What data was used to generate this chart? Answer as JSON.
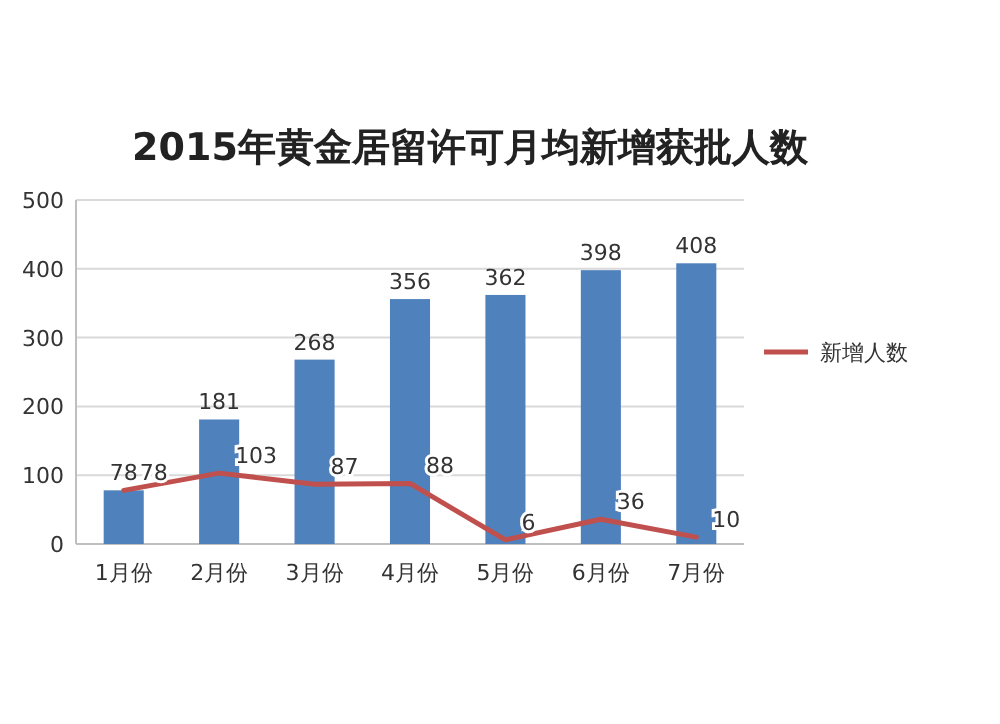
{
  "chart_data": {
    "type": "bar",
    "title": "2015年黄金居留许可月均新增获批人数",
    "categories": [
      "1月份",
      "2月份",
      "3月份",
      "4月份",
      "5月份",
      "6月份",
      "7月份"
    ],
    "series": [
      {
        "color": "#4f81bd",
        "values": [
          78,
          181,
          268,
          356,
          362,
          398,
          408
        ]
      },
      {
        "name": "新增人数",
        "type": "line",
        "color": "#c0504d",
        "values": [
          78,
          103,
          87,
          88,
          6,
          36,
          10
        ]
      }
    ],
    "ylim": [
      0,
      500
    ],
    "yticks": [
      0,
      100,
      200,
      300,
      400,
      500
    ],
    "grid": "y",
    "legend": "right",
    "data_labels": true
  }
}
